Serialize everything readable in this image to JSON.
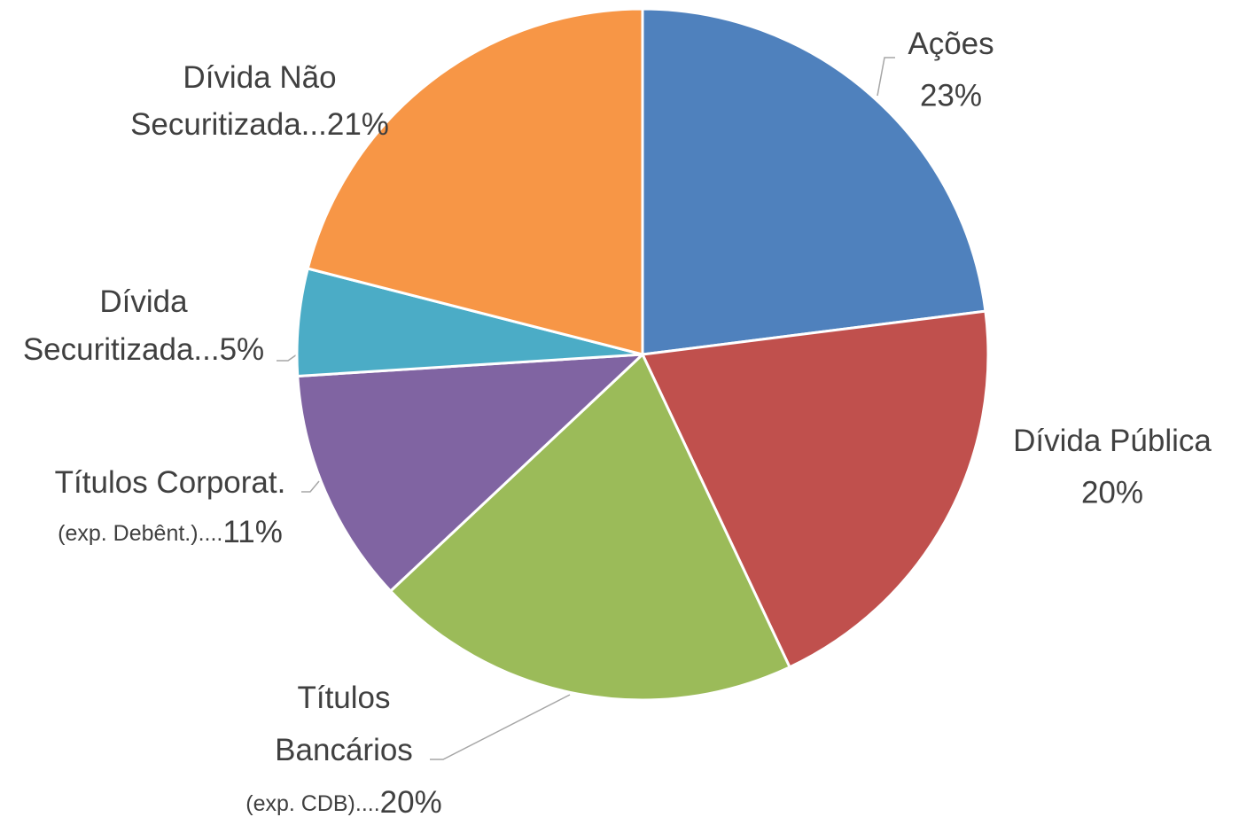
{
  "chart_data": {
    "type": "pie",
    "categories": [
      [
        "Ações"
      ],
      [
        "Dívida Pública"
      ],
      [
        "Títulos",
        "Bancários",
        "(exp. CDB)...."
      ],
      [
        "Títulos Corporat.",
        "(exp. Debênt.)...."
      ],
      [
        "Dívida",
        "Securitizada..."
      ],
      [
        "Dívida Não",
        "Securitizada..."
      ]
    ],
    "values": [
      23,
      20,
      20,
      11,
      5,
      21
    ],
    "value_labels": [
      "23%",
      "20%",
      "20%",
      "11%",
      "5%",
      "21%"
    ],
    "colors": [
      "#4f81bd",
      "#c0504d",
      "#9bbb59",
      "#8064a2",
      "#4bacc6",
      "#f79646"
    ]
  }
}
